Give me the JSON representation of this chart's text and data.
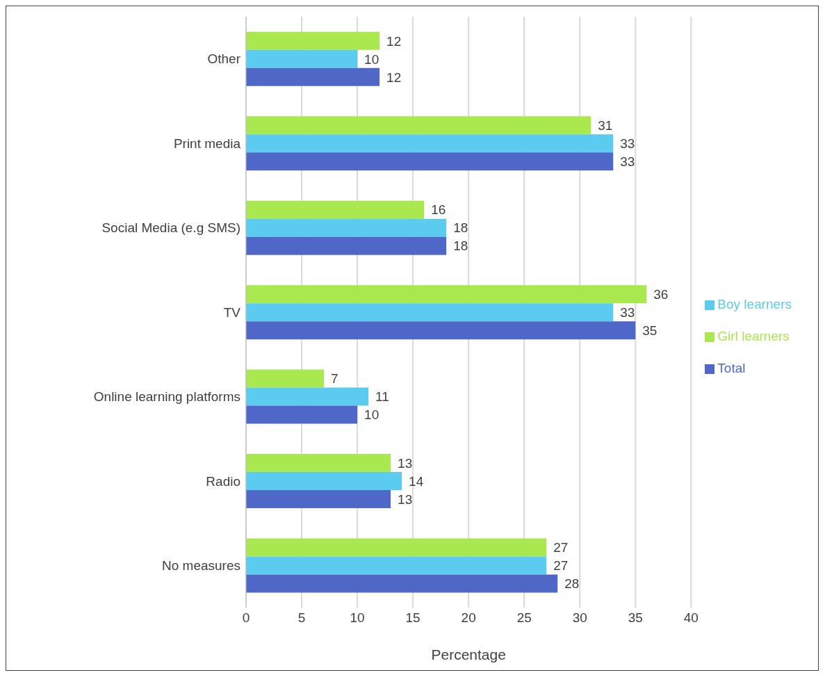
{
  "chart_data": {
    "type": "bar",
    "orientation": "horizontal",
    "xlabel": "Percentage",
    "categories": [
      "Other",
      "Print media",
      "Social Media (e.g SMS)",
      "TV",
      "Online learning platforms",
      "Radio",
      "No measures"
    ],
    "series": [
      {
        "name": "Girl learners",
        "color": "#a9e84e",
        "values": [
          12,
          31,
          16,
          36,
          7,
          13,
          27
        ]
      },
      {
        "name": "Boy learners",
        "color": "#5bcbf0",
        "values": [
          10,
          33,
          18,
          33,
          11,
          14,
          27
        ]
      },
      {
        "name": "Total",
        "color": "#4f68c8",
        "values": [
          12,
          33,
          18,
          35,
          10,
          13,
          28
        ]
      }
    ],
    "xlim": [
      0,
      40
    ],
    "xticks": [
      0,
      5,
      10,
      15,
      20,
      25,
      30,
      35,
      40
    ],
    "grid": "x",
    "legend": "right",
    "data_labels": true
  }
}
